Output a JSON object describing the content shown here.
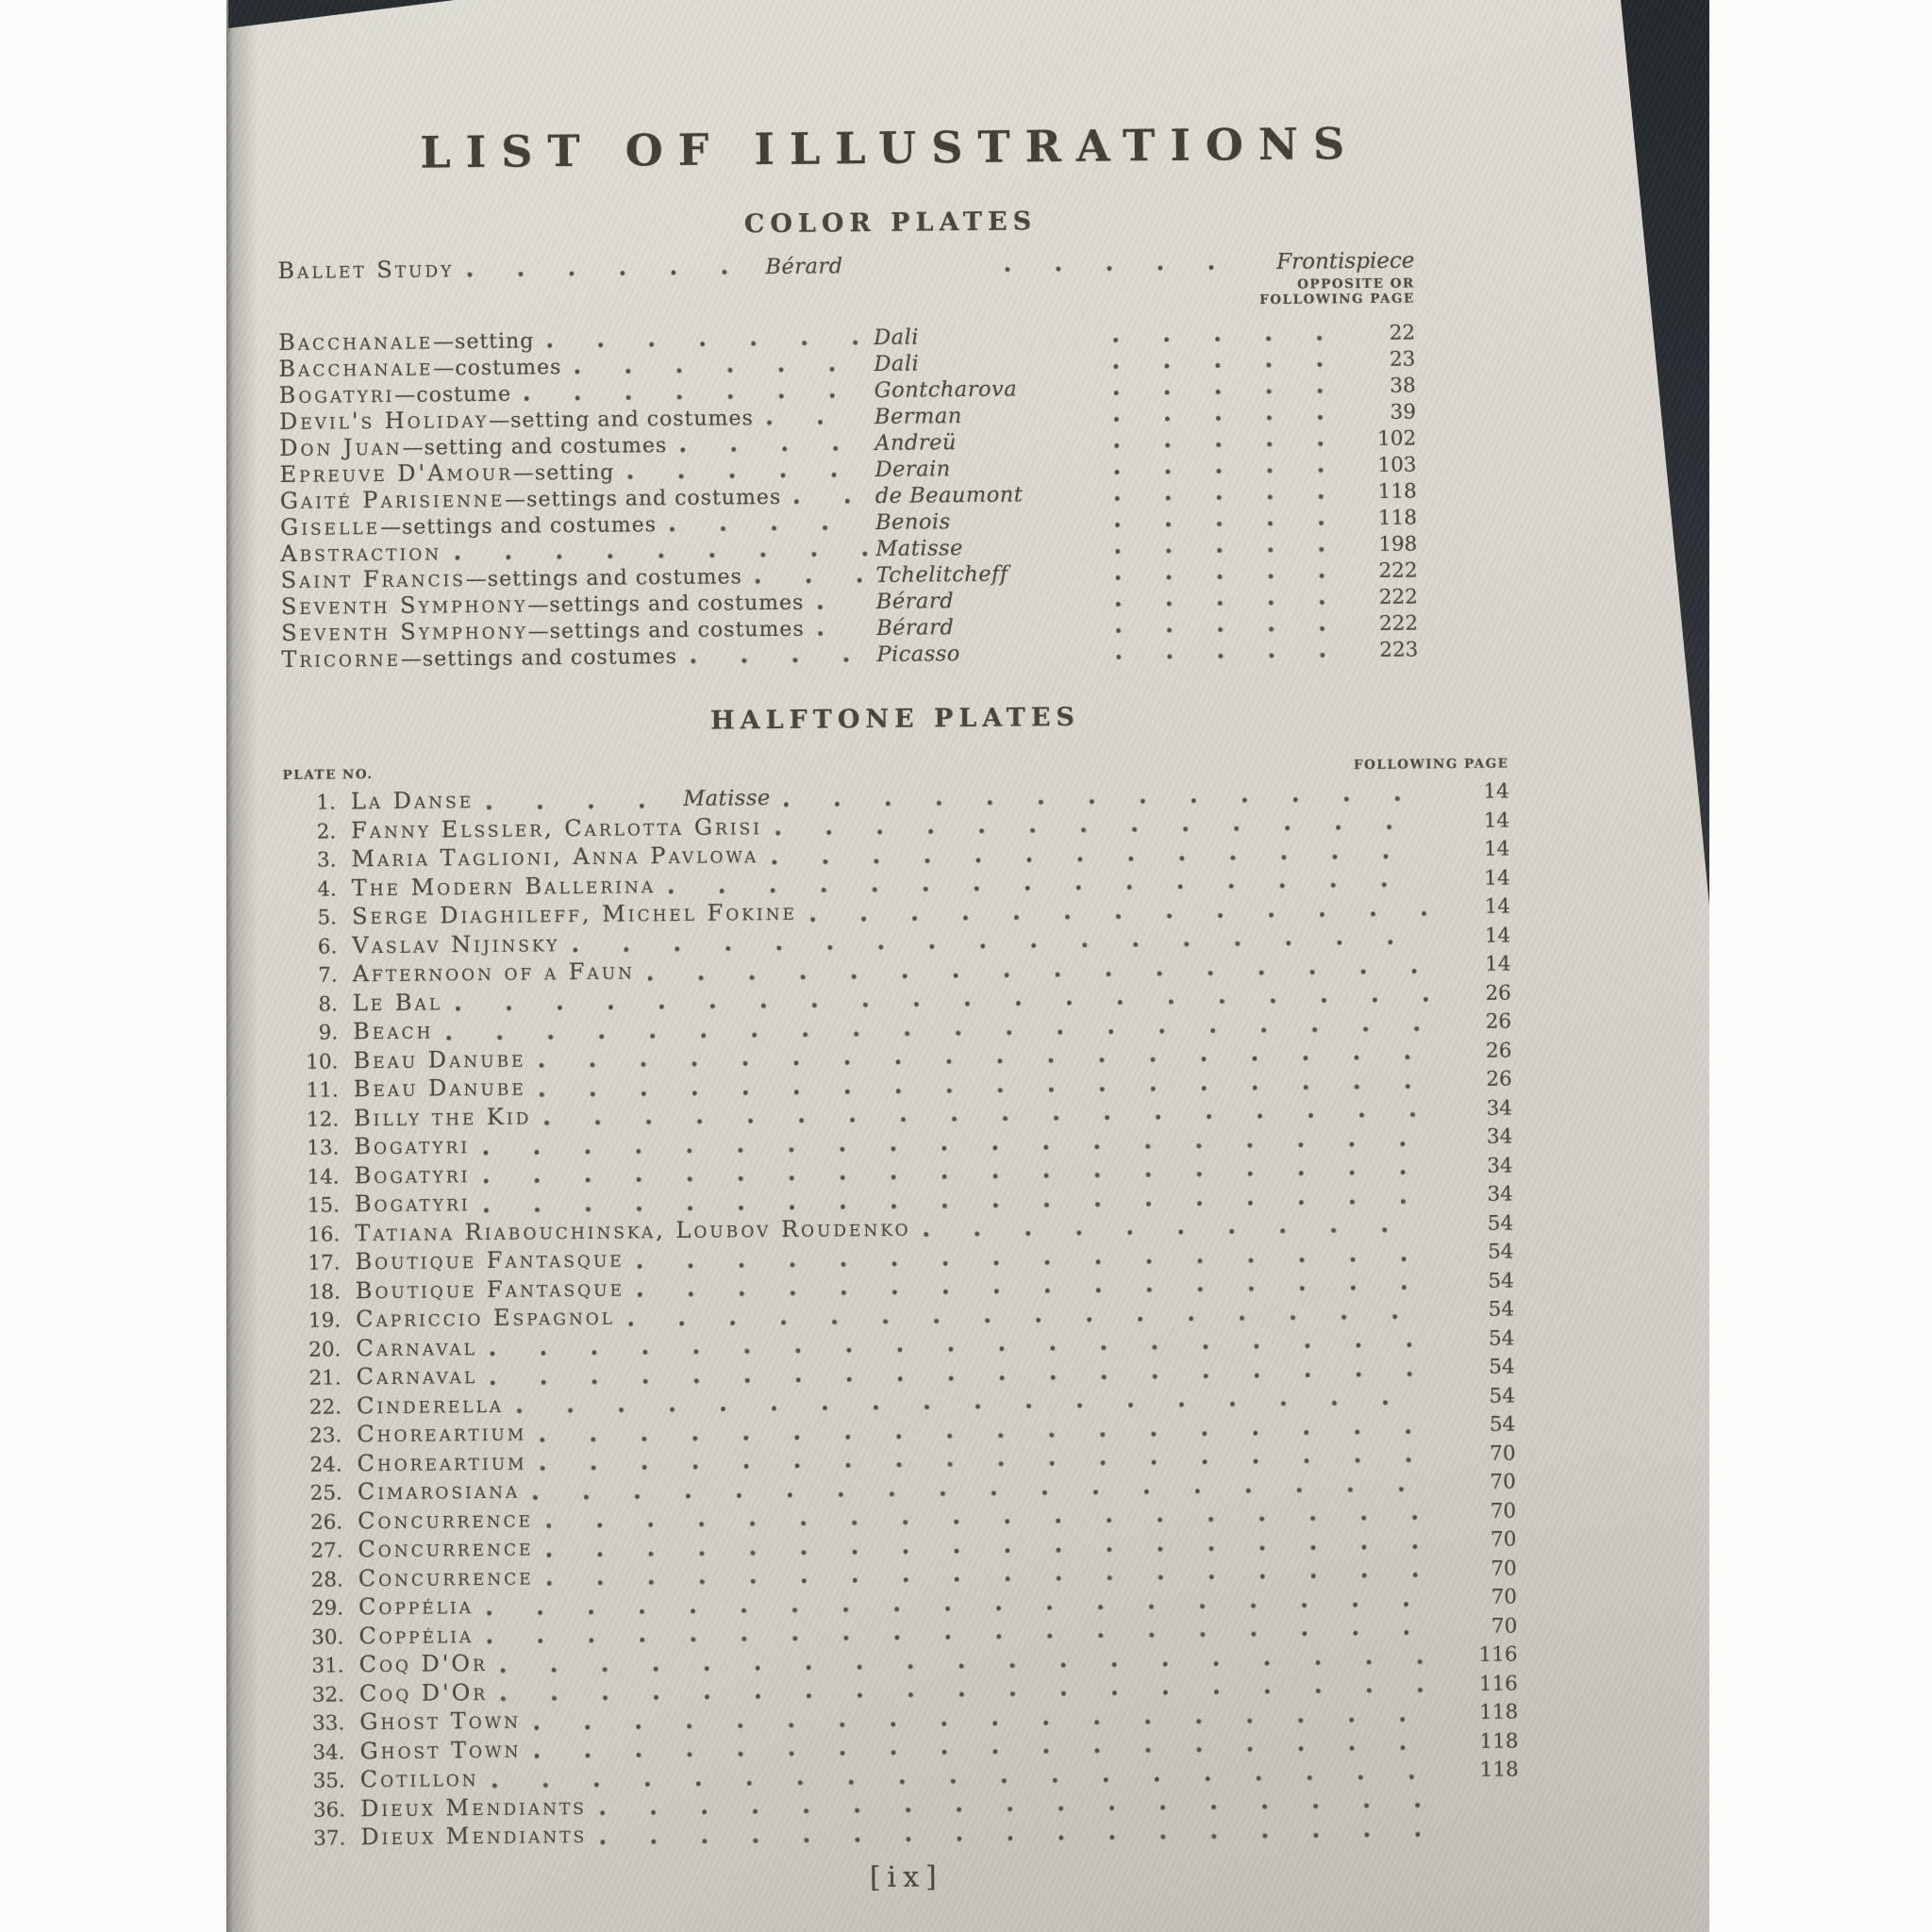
{
  "page": {
    "title": "LIST OF ILLUSTRATIONS",
    "folio": "[ix]",
    "color_plates": {
      "heading": "COLOR PLATES",
      "frontispiece": {
        "name": "Ballet Study",
        "artist": "Bérard",
        "page": "Frontispiece"
      },
      "note_line1": "OPPOSITE OR",
      "note_line2": "FOLLOWING PAGE",
      "rows": [
        {
          "name": "Bacchanale",
          "suffix": "—setting",
          "artist": "Dali",
          "page": "22"
        },
        {
          "name": "Bacchanale",
          "suffix": "—costumes",
          "artist": "Dali",
          "page": "23"
        },
        {
          "name": "Bogatyri",
          "suffix": "—costume",
          "artist": "Gontcharova",
          "page": "38"
        },
        {
          "name": "Devil's Holiday",
          "suffix": "—setting and costumes",
          "artist": "Berman",
          "page": "39"
        },
        {
          "name": "Don Juan",
          "suffix": "—setting and costumes",
          "artist": "Andreü",
          "page": "102"
        },
        {
          "name": "Epreuve D'Amour",
          "suffix": "—setting",
          "artist": "Derain",
          "page": "103"
        },
        {
          "name": "Gaité Parisienne",
          "suffix": "—settings and costumes",
          "artist": "de Beaumont",
          "page": "118"
        },
        {
          "name": "Giselle",
          "suffix": "—settings and costumes",
          "artist": "Benois",
          "page": "118"
        },
        {
          "name": "Abstraction",
          "suffix": "",
          "artist": "Matisse",
          "page": "198"
        },
        {
          "name": "Saint Francis",
          "suffix": "—settings and costumes",
          "artist": "Tchelitcheff",
          "page": "222"
        },
        {
          "name": "Seventh Symphony",
          "suffix": "—settings and costumes",
          "artist": "Bérard",
          "page": "222"
        },
        {
          "name": "Seventh Symphony",
          "suffix": "—settings and costumes",
          "artist": "Bérard",
          "page": "222"
        },
        {
          "name": "Tricorne",
          "suffix": "—settings and costumes",
          "artist": "Picasso",
          "page": "223"
        }
      ]
    },
    "halftone_plates": {
      "heading": "HALFTONE PLATES",
      "plate_no_header": "PLATE NO.",
      "following_page_header": "FOLLOWING PAGE",
      "rows": [
        {
          "no": "1.",
          "name": "La Danse",
          "artist": "Matisse",
          "page": "14"
        },
        {
          "no": "2.",
          "name": "Fanny Elssler, Carlotta Grisi",
          "artist": "",
          "page": "14"
        },
        {
          "no": "3.",
          "name": "Maria Taglioni, Anna Pavlowa",
          "artist": "",
          "page": "14"
        },
        {
          "no": "4.",
          "name": "The Modern Ballerina",
          "artist": "",
          "page": "14"
        },
        {
          "no": "5.",
          "name": "Serge Diaghileff, Michel Fokine",
          "artist": "",
          "page": "14"
        },
        {
          "no": "6.",
          "name": "Vaslav Nijinsky",
          "artist": "",
          "page": "14"
        },
        {
          "no": "7.",
          "name": "Afternoon of a Faun",
          "artist": "",
          "page": "14"
        },
        {
          "no": "8.",
          "name": "Le Bal",
          "artist": "",
          "page": "26"
        },
        {
          "no": "9.",
          "name": "Beach",
          "artist": "",
          "page": "26"
        },
        {
          "no": "10.",
          "name": "Beau Danube",
          "artist": "",
          "page": "26"
        },
        {
          "no": "11.",
          "name": "Beau Danube",
          "artist": "",
          "page": "26"
        },
        {
          "no": "12.",
          "name": "Billy the Kid",
          "artist": "",
          "page": "34"
        },
        {
          "no": "13.",
          "name": "Bogatyri",
          "artist": "",
          "page": "34"
        },
        {
          "no": "14.",
          "name": "Bogatyri",
          "artist": "",
          "page": "34"
        },
        {
          "no": "15.",
          "name": "Bogatyri",
          "artist": "",
          "page": "34"
        },
        {
          "no": "16.",
          "name": "Tatiana Riabouchinska, Loubov Roudenko",
          "artist": "",
          "page": "54"
        },
        {
          "no": "17.",
          "name": "Boutique Fantasque",
          "artist": "",
          "page": "54"
        },
        {
          "no": "18.",
          "name": "Boutique Fantasque",
          "artist": "",
          "page": "54"
        },
        {
          "no": "19.",
          "name": "Capriccio Espagnol",
          "artist": "",
          "page": "54"
        },
        {
          "no": "20.",
          "name": "Carnaval",
          "artist": "",
          "page": "54"
        },
        {
          "no": "21.",
          "name": "Carnaval",
          "artist": "",
          "page": "54"
        },
        {
          "no": "22.",
          "name": "Cinderella",
          "artist": "",
          "page": "54"
        },
        {
          "no": "23.",
          "name": "Choreartium",
          "artist": "",
          "page": "54"
        },
        {
          "no": "24.",
          "name": "Choreartium",
          "artist": "",
          "page": "70"
        },
        {
          "no": "25.",
          "name": "Cimarosiana",
          "artist": "",
          "page": "70"
        },
        {
          "no": "26.",
          "name": "Concurrence",
          "artist": "",
          "page": "70"
        },
        {
          "no": "27.",
          "name": "Concurrence",
          "artist": "",
          "page": "70"
        },
        {
          "no": "28.",
          "name": "Concurrence",
          "artist": "",
          "page": "70"
        },
        {
          "no": "29.",
          "name": "Coppélia",
          "artist": "",
          "page": "70"
        },
        {
          "no": "30.",
          "name": "Coppélia",
          "artist": "",
          "page": "70"
        },
        {
          "no": "31.",
          "name": "Coq D'Or",
          "artist": "",
          "page": "116"
        },
        {
          "no": "32.",
          "name": "Coq D'Or",
          "artist": "",
          "page": "116"
        },
        {
          "no": "33.",
          "name": "Ghost Town",
          "artist": "",
          "page": "118"
        },
        {
          "no": "34.",
          "name": "Ghost Town",
          "artist": "",
          "page": "118"
        },
        {
          "no": "35.",
          "name": "Cotillon",
          "artist": "",
          "page": "118"
        },
        {
          "no": "36.",
          "name": "Dieux Mendiants",
          "artist": "",
          "page": ""
        },
        {
          "no": "37.",
          "name": "Dieux Mendiants",
          "artist": "",
          "page": ""
        }
      ]
    }
  }
}
